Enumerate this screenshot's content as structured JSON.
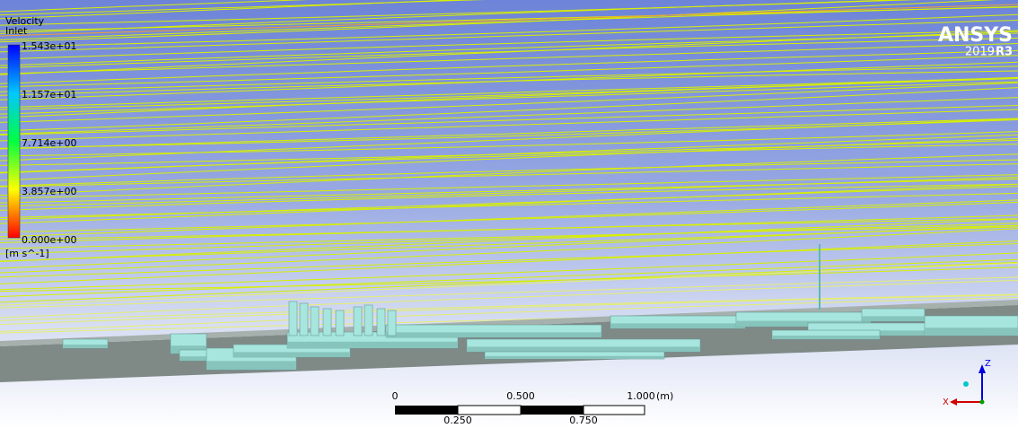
{
  "legend": {
    "title": "Velocity",
    "subtitle": "Inlet",
    "labels": [
      "1.543e+01",
      "1.157e+01",
      "7.714e+00",
      "3.857e+00",
      "0.000e+00"
    ],
    "unit": "[m s^-1]"
  },
  "logo": {
    "name": "ANSYS",
    "year": "2019",
    "release": "R3"
  },
  "scale_bar": {
    "top_labels": [
      "0",
      "0.500",
      "1.000"
    ],
    "unit": "(m)",
    "bottom_labels": [
      "0.250",
      "0.750"
    ]
  },
  "axes": {
    "z": "Z",
    "x": "X"
  }
}
